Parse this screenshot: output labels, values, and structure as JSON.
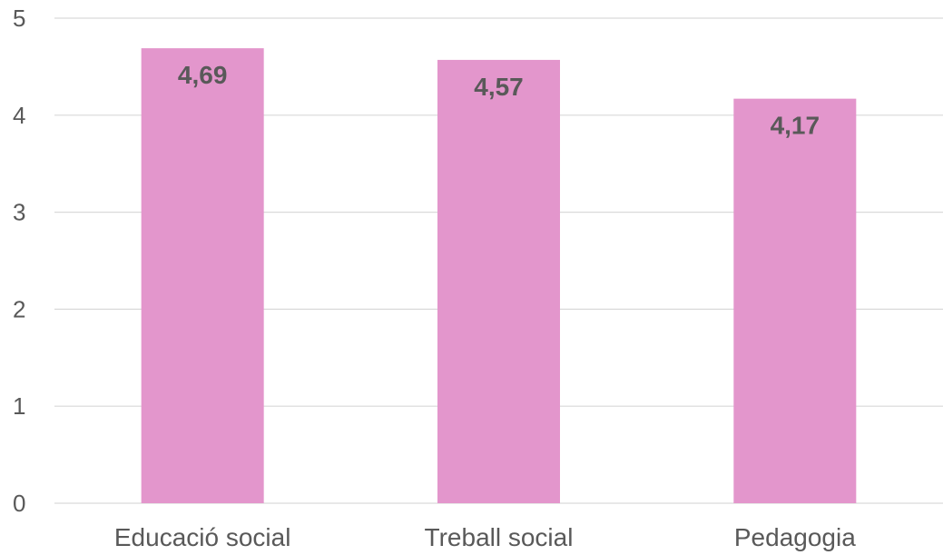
{
  "chart_data": {
    "type": "bar",
    "categories": [
      "Educació social",
      "Treball social",
      "Pedagogia"
    ],
    "values": [
      4.69,
      4.57,
      4.17
    ],
    "data_labels": [
      "4,69",
      "4,57",
      "4,17"
    ],
    "title": "",
    "xlabel": "",
    "ylabel": "",
    "ylim": [
      0,
      5
    ],
    "yticks": [
      0,
      1,
      2,
      3,
      4,
      5
    ],
    "grid": true,
    "legend": "none",
    "bar_color": "#e396cc"
  }
}
